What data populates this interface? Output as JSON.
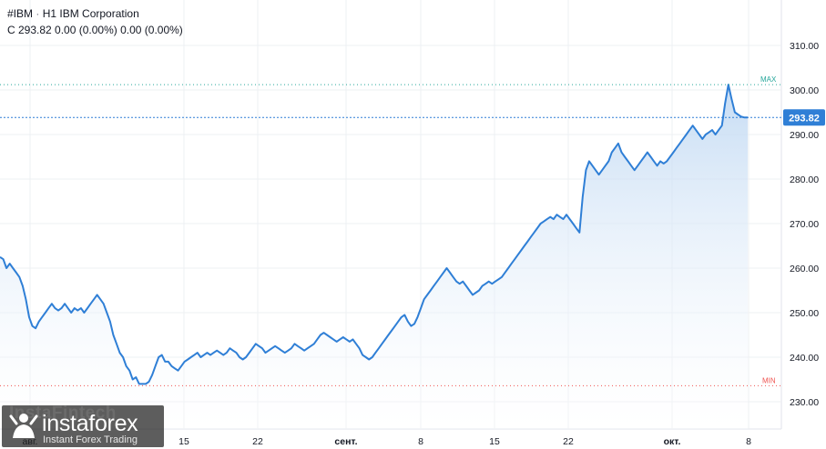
{
  "header": {
    "symbol": "#IBM",
    "separator": "·",
    "timeframe_name": "H1 IBM Corporation",
    "ohlc_line": "C 293.82 0.00 (0.00%) 0.00 (0.00%)"
  },
  "watermark": {
    "text": "InstaFintech",
    "brand": "instaforex",
    "tagline": "Instant Forex Trading"
  },
  "colors": {
    "line": "#2f7fd6",
    "area_top": "#bcd6f2",
    "grid": "#eef0f3",
    "price_label": "#2f7fd6",
    "max_color": "#26a69a",
    "min_color": "#ef5350"
  },
  "chart_data": {
    "type": "area",
    "title": "",
    "xlabel": "",
    "ylabel": "",
    "ylim": [
      225,
      315
    ],
    "y_ticks": [
      "310.00",
      "300.00",
      "290.00",
      "280.00",
      "270.00",
      "260.00",
      "250.00",
      "240.00",
      "230.00"
    ],
    "x_ticks": [
      "авг.",
      "15",
      "22",
      "сент.",
      "8",
      "15",
      "22",
      "окт.",
      "8"
    ],
    "last_price": 293.82,
    "last_price_label": "293.82",
    "max": {
      "label": "MAX",
      "value": 301.2
    },
    "min": {
      "label": "MIN",
      "value": 233.6
    },
    "grid": true,
    "series": [
      {
        "values": [
          262.5,
          262,
          260,
          261,
          260,
          259,
          258,
          256,
          253,
          249,
          247,
          246.5,
          248,
          249,
          250,
          251,
          252,
          251,
          250.5,
          251,
          252,
          251,
          250,
          251,
          250.5,
          251,
          250,
          251,
          252,
          253,
          254,
          253,
          252,
          250,
          248,
          245,
          243,
          241,
          240,
          238,
          237,
          235,
          235.5,
          234,
          234,
          234,
          234.5,
          236,
          238,
          240,
          240.5,
          239,
          239,
          238,
          237.5,
          237,
          238,
          239,
          239.5,
          240,
          240.5,
          241,
          240,
          240.5,
          241,
          240.5,
          241,
          241.5,
          241,
          240.5,
          241,
          242,
          241.5,
          241,
          240,
          239.5,
          240,
          241,
          242,
          243,
          242.5,
          242,
          241,
          241.5,
          242,
          242.5,
          242,
          241.5,
          241,
          241.5,
          242,
          243,
          242.5,
          242,
          241.5,
          242,
          242.5,
          243,
          244,
          245,
          245.5,
          245,
          244.5,
          244,
          243.5,
          244,
          244.5,
          244,
          243.5,
          244,
          243,
          242,
          240.5,
          240,
          239.5,
          240,
          241,
          242,
          243,
          244,
          245,
          246,
          247,
          248,
          249,
          249.5,
          248,
          247,
          247.5,
          249,
          251,
          253,
          254,
          255,
          256,
          257,
          258,
          259,
          260,
          259,
          258,
          257,
          256.5,
          257,
          256,
          255,
          254,
          254.5,
          255,
          256,
          256.5,
          257,
          256.5,
          257,
          257.5,
          258,
          259,
          260,
          261,
          262,
          263,
          264,
          265,
          266,
          267,
          268,
          269,
          270,
          270.5,
          271,
          271.5,
          271,
          272,
          271.5,
          271,
          272,
          271,
          270,
          269,
          268,
          276,
          282,
          284,
          283,
          282,
          281,
          282,
          283,
          284,
          286,
          287,
          288,
          286,
          285,
          284,
          283,
          282,
          283,
          284,
          285,
          286,
          285,
          284,
          283,
          284,
          283.5,
          284,
          285,
          286,
          287,
          288,
          289,
          290,
          291,
          292,
          291,
          290,
          289,
          290,
          290.5,
          291,
          290,
          291,
          292,
          297,
          301.2,
          298,
          295,
          294.5,
          294,
          293.82,
          293.82
        ],
        "x_end_fraction": 0.957
      }
    ]
  }
}
